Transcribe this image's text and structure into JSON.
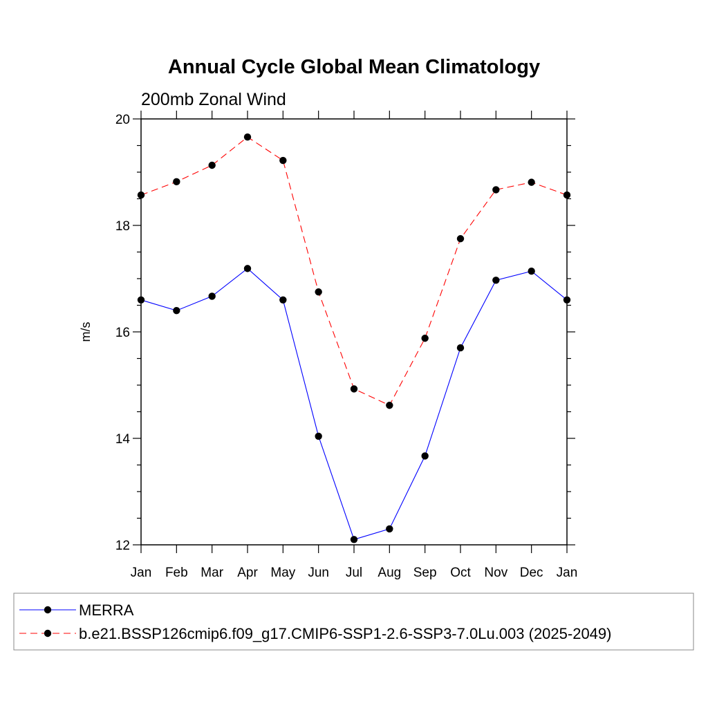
{
  "chart_data": {
    "type": "line",
    "title": "Annual Cycle Global Mean Climatology",
    "subtitle": "200mb Zonal Wind",
    "xlabel": "",
    "ylabel": "m/s",
    "categories": [
      "Jan",
      "Feb",
      "Mar",
      "Apr",
      "May",
      "Jun",
      "Jul",
      "Aug",
      "Sep",
      "Oct",
      "Nov",
      "Dec",
      "Jan"
    ],
    "ylim": [
      12,
      20
    ],
    "yticks": [
      12,
      14,
      16,
      18,
      20
    ],
    "grid": false,
    "legend_position": "bottom",
    "series": [
      {
        "name": "MERRA",
        "color": "#0000ff",
        "line_style": "solid",
        "marker": "filled-circle",
        "values": [
          16.6,
          16.4,
          16.67,
          17.19,
          16.6,
          14.04,
          12.1,
          12.3,
          13.67,
          15.7,
          16.97,
          17.14,
          16.6
        ]
      },
      {
        "name": "b.e21.BSSP126cmip6.f09_g17.CMIP6-SSP1-2.6-SSP3-7.0Lu.003 (2025-2049)",
        "color": "#ff0000",
        "line_style": "dashed",
        "marker": "filled-circle",
        "values": [
          18.57,
          18.82,
          19.13,
          19.66,
          19.22,
          16.75,
          14.93,
          14.62,
          15.88,
          17.75,
          18.67,
          18.81,
          18.57
        ]
      }
    ]
  }
}
